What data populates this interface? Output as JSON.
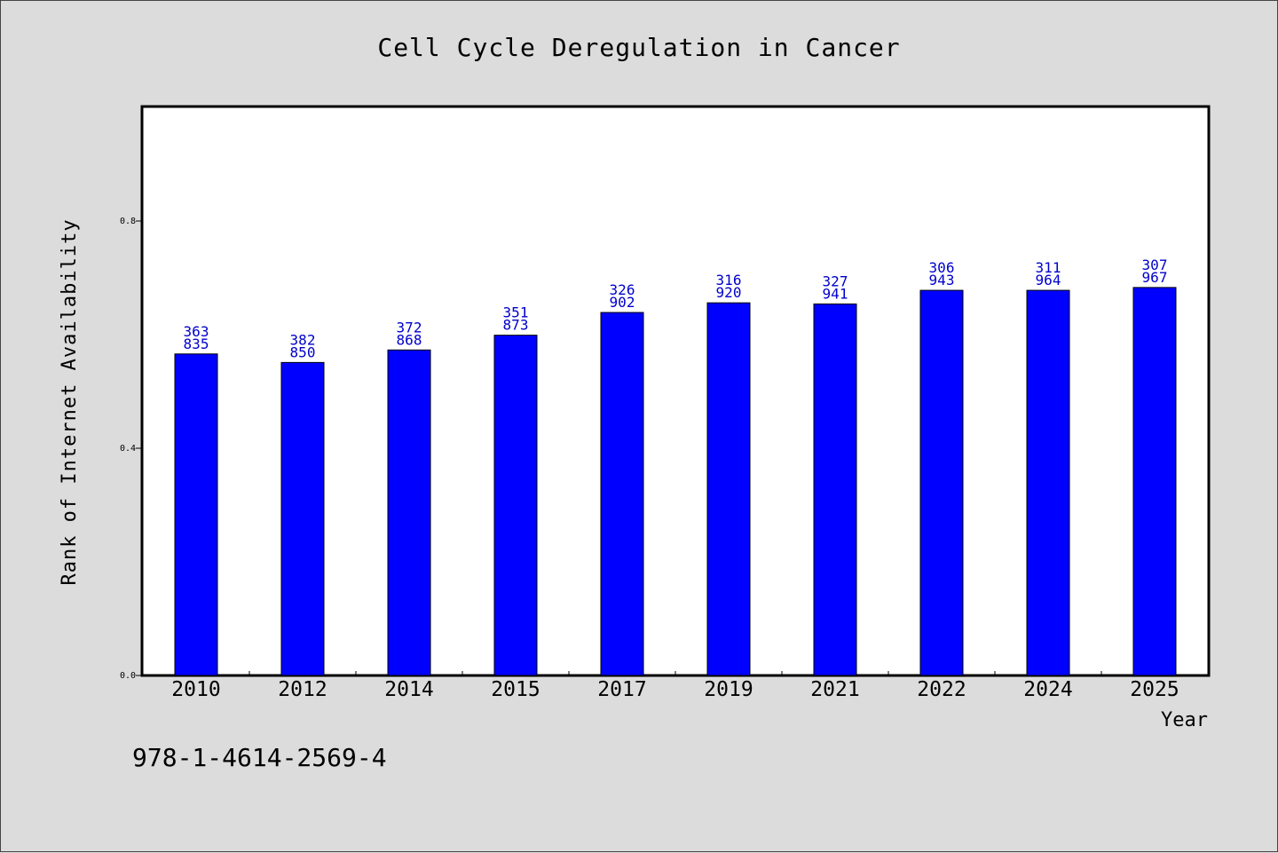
{
  "footer_text": "978-1-4614-2569-4",
  "chart_data": {
    "type": "bar",
    "title": "Cell Cycle Deregulation in Cancer",
    "xlabel": "Year",
    "ylabel": "Rank of Internet Availability",
    "categories": [
      "2010",
      "2012",
      "2014",
      "2015",
      "2017",
      "2019",
      "2021",
      "2022",
      "2024",
      "2025"
    ],
    "values": [
      0.566,
      0.551,
      0.573,
      0.599,
      0.639,
      0.656,
      0.654,
      0.678,
      0.678,
      0.683
    ],
    "data_labels_top": [
      "363",
      "382",
      "372",
      "351",
      "326",
      "316",
      "327",
      "306",
      "311",
      "307"
    ],
    "data_labels_bottom": [
      "835",
      "850",
      "868",
      "873",
      "902",
      "920",
      "941",
      "943",
      "964",
      "967"
    ],
    "yticks": [
      0.0,
      0.4,
      0.8
    ],
    "ytick_labels": [
      "0.0",
      "0.4",
      "0.8"
    ],
    "ylim": [
      0,
      1.0
    ],
    "grid": false,
    "colors": {
      "bar": "#0000ff",
      "bar_edge": "#000000",
      "data_label": "#0000cc",
      "background": "#dcdcdc",
      "plot_bg": "#ffffff"
    }
  }
}
